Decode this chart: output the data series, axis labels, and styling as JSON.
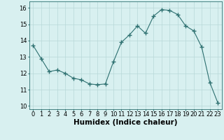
{
  "x": [
    0,
    1,
    2,
    3,
    4,
    5,
    6,
    7,
    8,
    9,
    10,
    11,
    12,
    13,
    14,
    15,
    16,
    17,
    18,
    19,
    20,
    21,
    22,
    23
  ],
  "y": [
    13.7,
    12.9,
    12.1,
    12.2,
    12.0,
    11.7,
    11.6,
    11.35,
    11.3,
    11.35,
    12.7,
    13.9,
    14.35,
    14.9,
    14.45,
    15.5,
    15.9,
    15.85,
    15.6,
    14.9,
    14.6,
    13.6,
    11.45,
    10.2
  ],
  "line_color": "#2d7070",
  "marker": "+",
  "marker_size": 4,
  "bg_color": "#d8f0f0",
  "grid_color": "#b8d8d8",
  "xlabel": "Humidex (Indice chaleur)",
  "ylim": [
    9.8,
    16.4
  ],
  "xlim": [
    -0.5,
    23.5
  ],
  "yticks": [
    10,
    11,
    12,
    13,
    14,
    15,
    16
  ],
  "xticks": [
    0,
    1,
    2,
    3,
    4,
    5,
    6,
    7,
    8,
    9,
    10,
    11,
    12,
    13,
    14,
    15,
    16,
    17,
    18,
    19,
    20,
    21,
    22,
    23
  ],
  "tick_fontsize": 6,
  "xlabel_fontsize": 7.5
}
